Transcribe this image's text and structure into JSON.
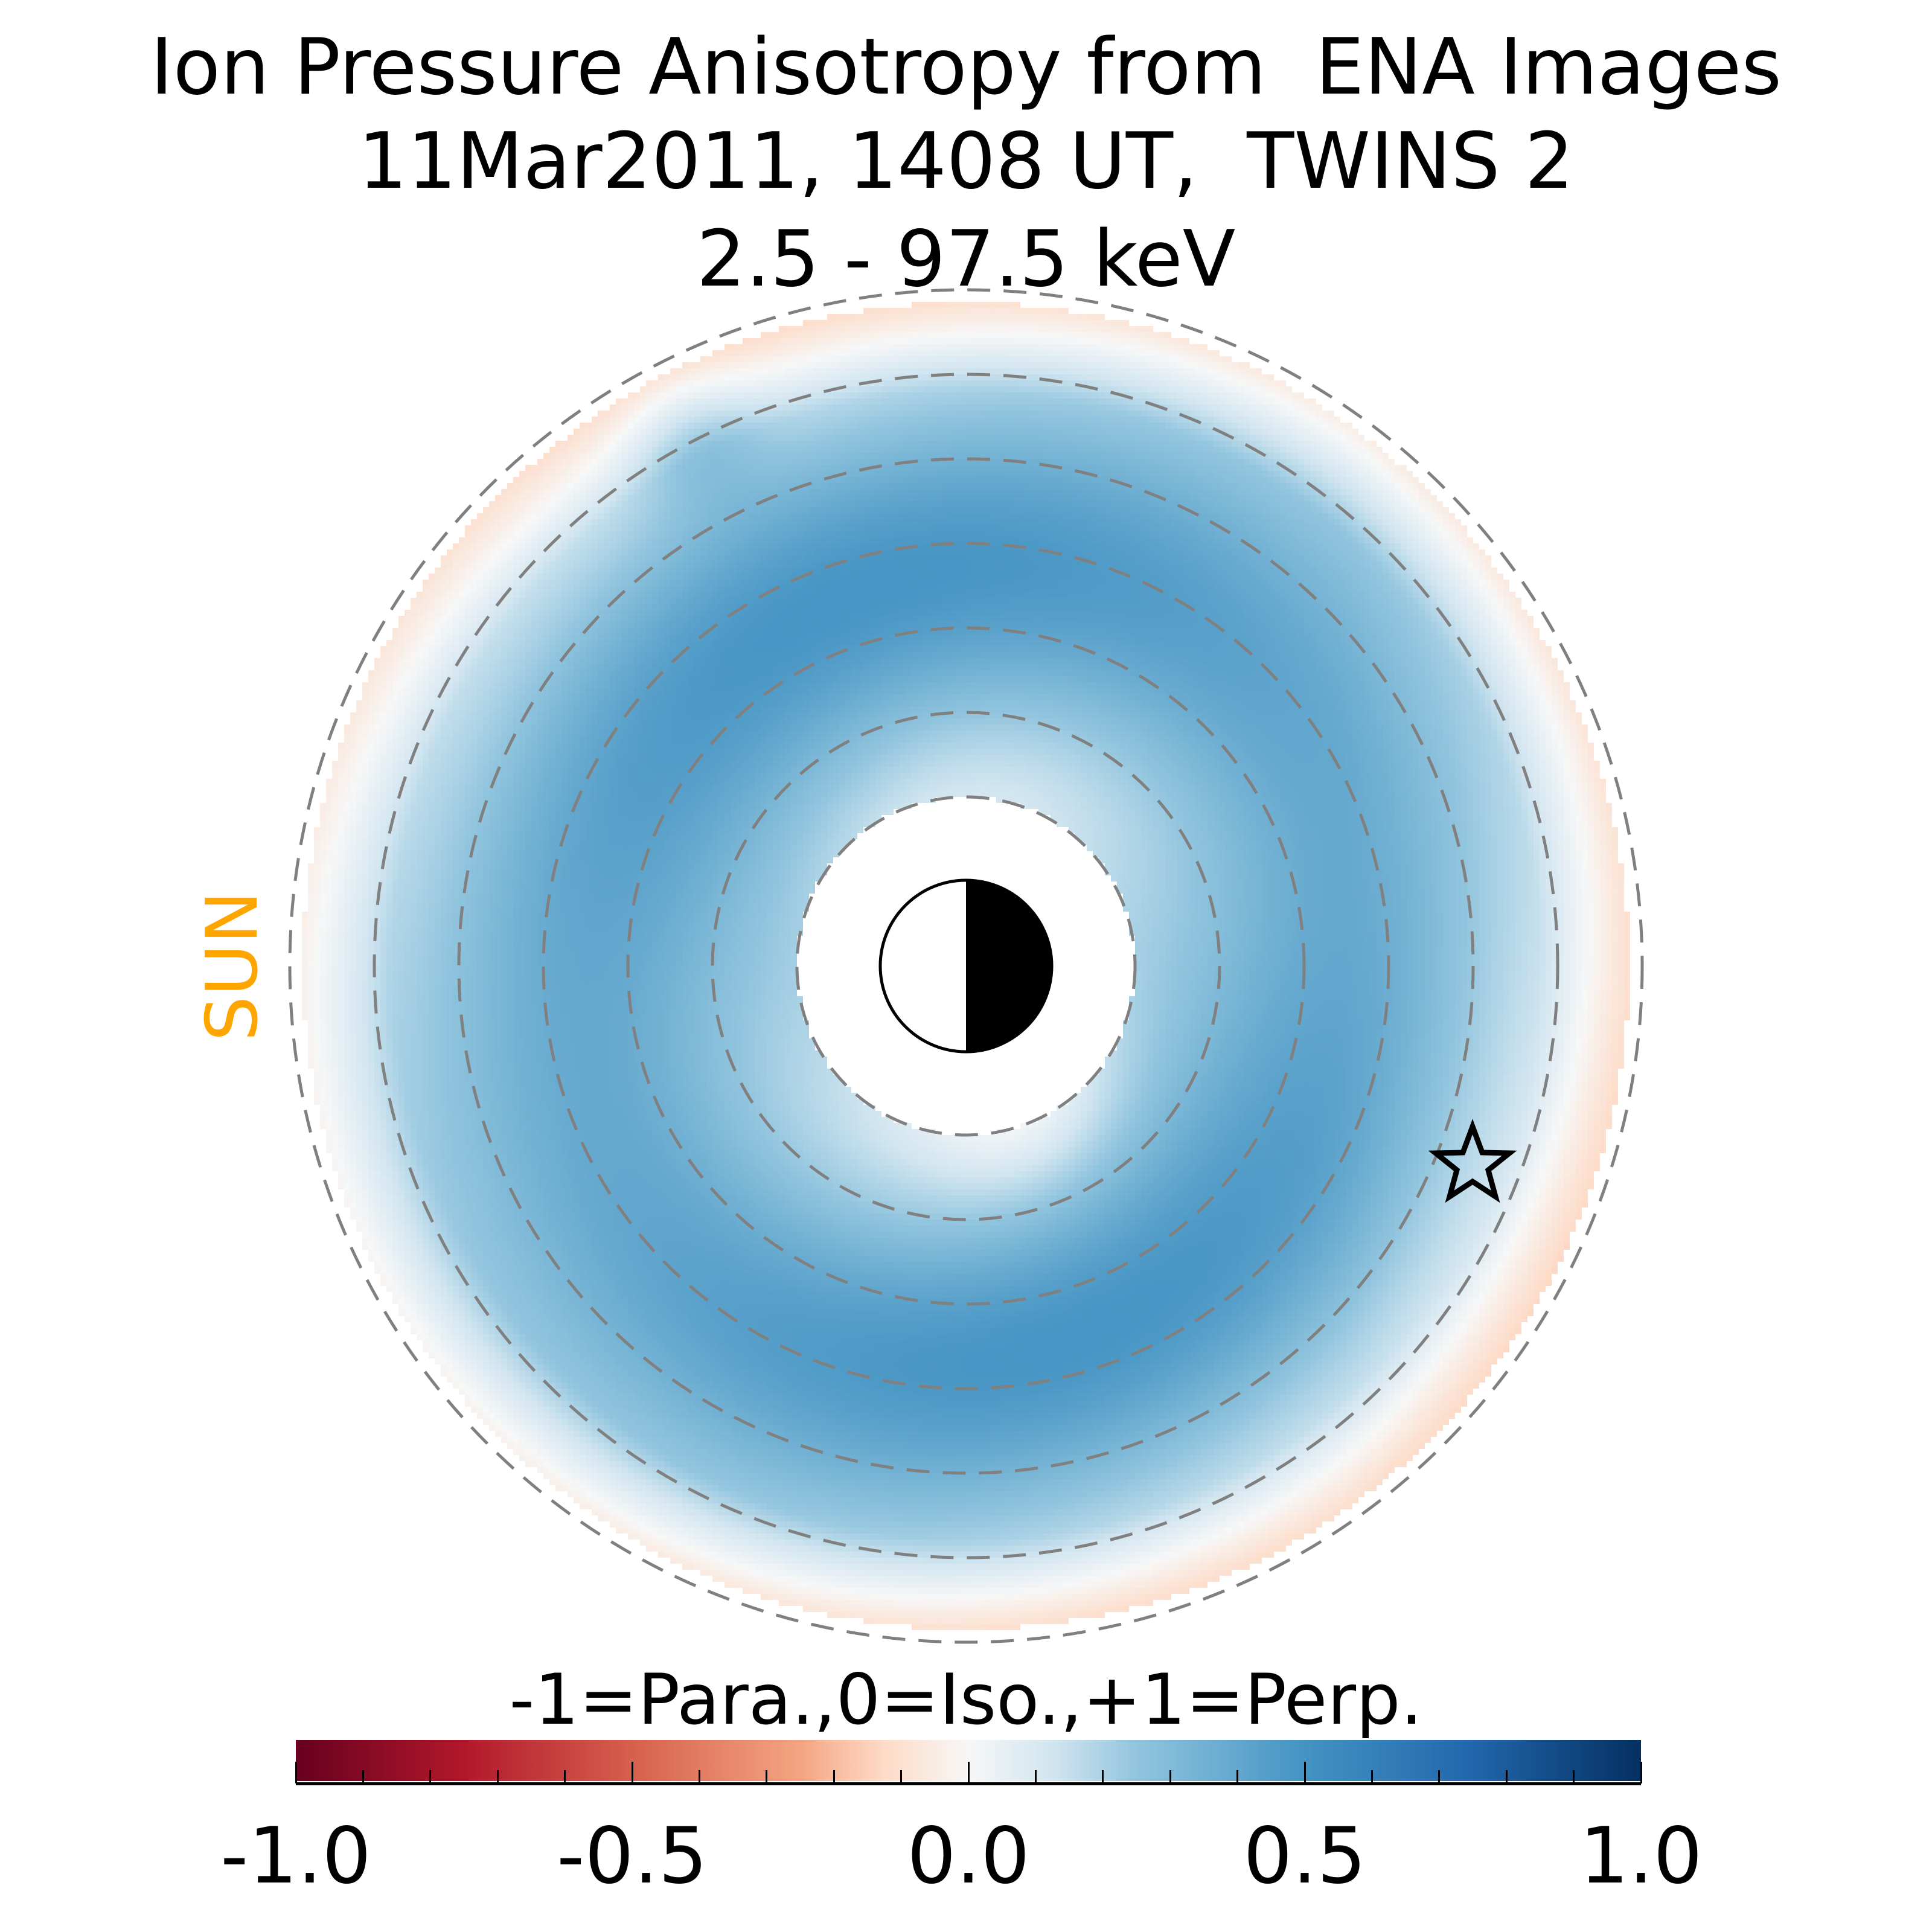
{
  "chart_data": {
    "type": "heatmap",
    "title_lines": [
      "Ion Pressure Anisotropy from  ENA Images",
      "11Mar2011, 1408 UT,  TWINS 2",
      "2.5 - 97.5 keV"
    ],
    "projection": "polar equatorial map, sun to the left",
    "colorbar": {
      "label": "-1=Para.,0=Iso.,+1=Perp.",
      "range": [
        -1.0,
        1.0
      ],
      "colormap": "RdBu",
      "major_ticks": [
        -1.0,
        -0.5,
        0.0,
        0.5,
        1.0
      ],
      "tick_labels": [
        "-1.0",
        "-0.5",
        "0.0",
        "0.5",
        "1.0"
      ],
      "minor_tick_step": 0.1
    },
    "annotations": {
      "sun_label": "SUN",
      "star_marker": "spacecraft position",
      "earth_symbol": "day/night Earth"
    },
    "rings_RE": [
      2,
      3,
      4,
      5,
      6,
      7,
      8
    ],
    "value_range_observed": [
      0.05,
      0.55
    ],
    "colors": {
      "sun": "#ffa500",
      "ring": "#808080"
    }
  }
}
